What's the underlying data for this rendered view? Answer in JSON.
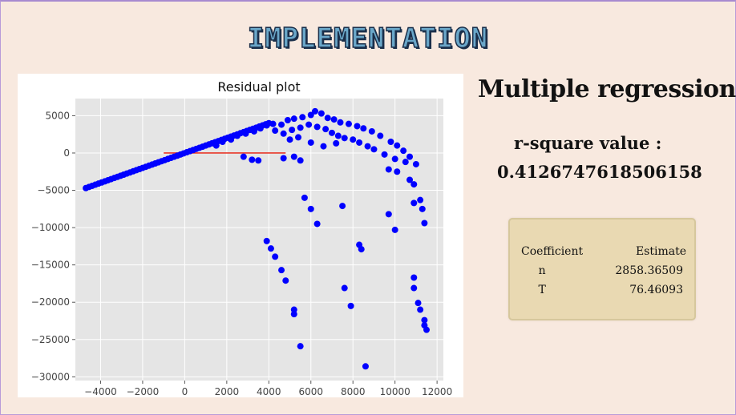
{
  "slide": {
    "title": "IMPLEMENTATION",
    "heading": "Multiple regression",
    "r2_label": "r-square value :",
    "r2_value": "0.4126747618506158"
  },
  "coefficients": {
    "headers": [
      "Coefficient",
      "Estimate"
    ],
    "rows": [
      {
        "name": "n",
        "estimate": "2858.36509"
      },
      {
        "name": "T",
        "estimate": "76.46093"
      }
    ]
  },
  "colors": {
    "points": "#0000ff",
    "fit_line": "#e8392a",
    "plot_bg": "#e5e5e5",
    "grid": "#ffffff"
  },
  "chart_data": {
    "type": "scatter",
    "title": "Residual plot",
    "xlabel": "",
    "ylabel": "",
    "xlim": [
      -5200,
      12300
    ],
    "ylim": [
      -30500,
      7300
    ],
    "xticks": [
      -4000,
      -2000,
      0,
      2000,
      4000,
      6000,
      8000,
      10000,
      12000
    ],
    "xtick_labels": [
      "−4000",
      "−2000",
      "0",
      "2000",
      "4000",
      "6000",
      "8000",
      "10000",
      "12000"
    ],
    "yticks": [
      5000,
      0,
      -5000,
      -10000,
      -15000,
      -20000,
      -25000,
      -30000
    ],
    "ytick_labels": [
      "5000",
      "0",
      "−5000",
      "−10000",
      "−15000",
      "−20000",
      "−25000",
      "−30000"
    ],
    "grid": true,
    "reference_line": {
      "x": [
        -1000,
        4800
      ],
      "y": [
        0,
        0
      ]
    },
    "points": [
      [
        -4700,
        -4700
      ],
      [
        -4550,
        -4550
      ],
      [
        -4400,
        -4400
      ],
      [
        -4250,
        -4250
      ],
      [
        -4100,
        -4100
      ],
      [
        -3950,
        -3950
      ],
      [
        -3800,
        -3800
      ],
      [
        -3650,
        -3650
      ],
      [
        -3500,
        -3500
      ],
      [
        -3350,
        -3350
      ],
      [
        -3200,
        -3200
      ],
      [
        -3050,
        -3050
      ],
      [
        -2900,
        -2900
      ],
      [
        -2750,
        -2750
      ],
      [
        -2600,
        -2600
      ],
      [
        -2450,
        -2450
      ],
      [
        -2300,
        -2300
      ],
      [
        -2150,
        -2150
      ],
      [
        -2000,
        -2000
      ],
      [
        -1850,
        -1850
      ],
      [
        -1700,
        -1700
      ],
      [
        -1550,
        -1550
      ],
      [
        -1400,
        -1400
      ],
      [
        -1250,
        -1250
      ],
      [
        -1100,
        -1100
      ],
      [
        -950,
        -950
      ],
      [
        -800,
        -800
      ],
      [
        -650,
        -650
      ],
      [
        -500,
        -500
      ],
      [
        -350,
        -350
      ],
      [
        -200,
        -200
      ],
      [
        -50,
        -50
      ],
      [
        100,
        100
      ],
      [
        250,
        250
      ],
      [
        400,
        400
      ],
      [
        550,
        550
      ],
      [
        700,
        700
      ],
      [
        850,
        850
      ],
      [
        1000,
        1000
      ],
      [
        1150,
        1150
      ],
      [
        1300,
        1300
      ],
      [
        1450,
        1450
      ],
      [
        1600,
        1600
      ],
      [
        1750,
        1750
      ],
      [
        1900,
        1900
      ],
      [
        2050,
        2050
      ],
      [
        2200,
        2200
      ],
      [
        2350,
        2350
      ],
      [
        2500,
        2500
      ],
      [
        2650,
        2650
      ],
      [
        2800,
        2800
      ],
      [
        2950,
        2950
      ],
      [
        3100,
        3100
      ],
      [
        3250,
        3250
      ],
      [
        3400,
        3400
      ],
      [
        3550,
        3550
      ],
      [
        3700,
        3700
      ],
      [
        3850,
        3850
      ],
      [
        4000,
        4000
      ],
      [
        1500,
        1000
      ],
      [
        1800,
        1500
      ],
      [
        2200,
        1800
      ],
      [
        2500,
        2300
      ],
      [
        2900,
        2600
      ],
      [
        3300,
        2900
      ],
      [
        3600,
        3300
      ],
      [
        3900,
        3700
      ],
      [
        4200,
        3900
      ],
      [
        4600,
        3800
      ],
      [
        4900,
        4400
      ],
      [
        5200,
        4600
      ],
      [
        5600,
        4800
      ],
      [
        6000,
        5100
      ],
      [
        6200,
        5600
      ],
      [
        6500,
        5300
      ],
      [
        6800,
        4700
      ],
      [
        7100,
        4500
      ],
      [
        7400,
        4100
      ],
      [
        7800,
        3900
      ],
      [
        8200,
        3600
      ],
      [
        8500,
        3300
      ],
      [
        8900,
        2900
      ],
      [
        9300,
        2300
      ],
      [
        9800,
        1500
      ],
      [
        10100,
        1000
      ],
      [
        10400,
        300
      ],
      [
        10700,
        -500
      ],
      [
        11000,
        -1500
      ],
      [
        4300,
        3000
      ],
      [
        4700,
        2600
      ],
      [
        5100,
        3100
      ],
      [
        5500,
        3400
      ],
      [
        5900,
        3800
      ],
      [
        6300,
        3500
      ],
      [
        6700,
        3200
      ],
      [
        7000,
        2700
      ],
      [
        7300,
        2300
      ],
      [
        7600,
        2000
      ],
      [
        8000,
        1800
      ],
      [
        8300,
        1400
      ],
      [
        8700,
        900
      ],
      [
        9000,
        500
      ],
      [
        9500,
        -200
      ],
      [
        10000,
        -800
      ],
      [
        10500,
        -1200
      ],
      [
        5000,
        1800
      ],
      [
        5400,
        2100
      ],
      [
        6000,
        1400
      ],
      [
        6600,
        900
      ],
      [
        7200,
        1300
      ],
      [
        4700,
        -700
      ],
      [
        5200,
        -500
      ],
      [
        5500,
        -1000
      ],
      [
        2800,
        -500
      ],
      [
        3200,
        -900
      ],
      [
        3500,
        -1000
      ],
      [
        9700,
        -2200
      ],
      [
        10100,
        -2500
      ],
      [
        10700,
        -3600
      ],
      [
        10900,
        -4200
      ],
      [
        11200,
        -6300
      ],
      [
        10900,
        -6700
      ],
      [
        11300,
        -7500
      ],
      [
        11400,
        -9400
      ],
      [
        5700,
        -6000
      ],
      [
        6000,
        -7500
      ],
      [
        6300,
        -9500
      ],
      [
        7500,
        -7100
      ],
      [
        9700,
        -8200
      ],
      [
        10000,
        -10300
      ],
      [
        3900,
        -11800
      ],
      [
        4100,
        -12800
      ],
      [
        4300,
        -13900
      ],
      [
        4600,
        -15700
      ],
      [
        4800,
        -17100
      ],
      [
        5200,
        -21000
      ],
      [
        5200,
        -21600
      ],
      [
        5500,
        -25900
      ],
      [
        8300,
        -12300
      ],
      [
        8400,
        -12900
      ],
      [
        7600,
        -18100
      ],
      [
        7900,
        -20500
      ],
      [
        8600,
        -28600
      ],
      [
        10900,
        -16700
      ],
      [
        10900,
        -18100
      ],
      [
        11100,
        -20100
      ],
      [
        11200,
        -21000
      ],
      [
        11400,
        -22400
      ],
      [
        11400,
        -23100
      ],
      [
        11500,
        -23700
      ]
    ]
  }
}
